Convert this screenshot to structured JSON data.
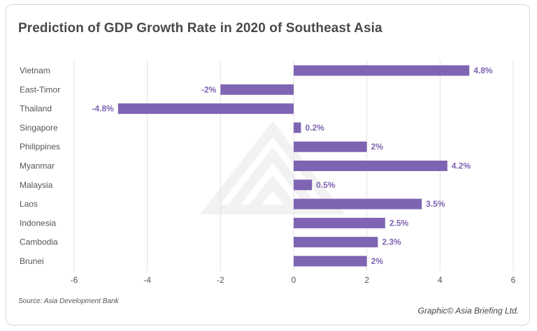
{
  "chart_data": {
    "type": "bar",
    "orientation": "horizontal",
    "title": "Prediction of GDP Growth Rate in 2020 of Southeast Asia",
    "categories": [
      "Vietnam",
      "East-Timor",
      "Thailand",
      "Singapore",
      "Philippines",
      "Myanmar",
      "Malaysia",
      "Laos",
      "Indonesia",
      "Cambodia",
      "Brunei"
    ],
    "values": [
      4.8,
      -2,
      -4.8,
      0.2,
      2,
      4.2,
      0.5,
      3.5,
      2.5,
      2.3,
      2
    ],
    "value_labels": [
      "4.8%",
      "-2%",
      "-4.8%",
      "0.2%",
      "2%",
      "4.2%",
      "0.5%",
      "3.5%",
      "2.5%",
      "2.3%",
      "2%"
    ],
    "xlim": [
      -6,
      6
    ],
    "xticks": [
      -6,
      -4,
      -2,
      0,
      2,
      4,
      6
    ],
    "xtick_labels": [
      "-6",
      "-4",
      "-2",
      "0",
      "2",
      "4",
      "6"
    ],
    "grid": "vertical",
    "bar_color": "#7e64b2"
  },
  "source": "Source: Asia Development Bank",
  "credit": "Graphic© Asia Briefing Ltd."
}
